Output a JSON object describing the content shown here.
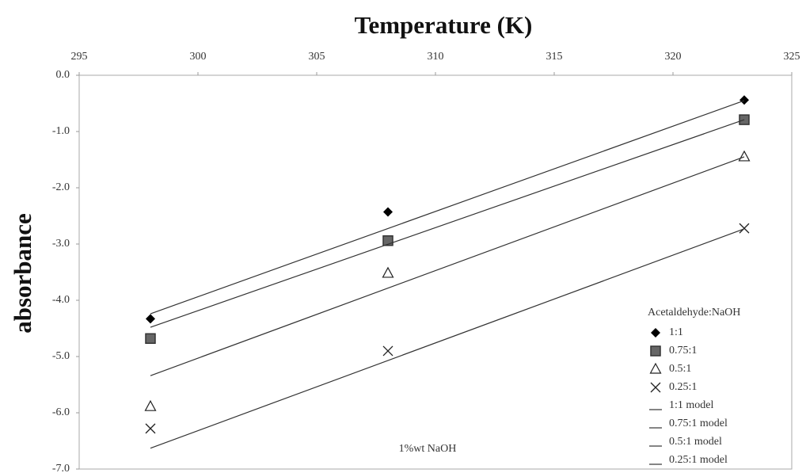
{
  "chart_data": {
    "type": "scatter",
    "x_label": "Temperature (K)",
    "y_label": "absorbance",
    "annotation": "1%wt NaOH",
    "legend_title": "Acetaldehyde:NaOH",
    "legend": "lower right",
    "xlim": [
      295,
      325
    ],
    "xticks": [
      295,
      300,
      305,
      310,
      315,
      320,
      325
    ],
    "ylim": [
      -7,
      0
    ],
    "yticks": [
      {
        "value": 0,
        "label": "0.0"
      },
      {
        "value": -1,
        "label": "-1.0"
      },
      {
        "value": -2,
        "label": "-2.0"
      },
      {
        "value": -3,
        "label": "-3.0"
      },
      {
        "value": -4,
        "label": "-4.0"
      },
      {
        "value": -5,
        "label": "-5.0"
      },
      {
        "value": -6,
        "label": "-6.0"
      },
      {
        "value": -7,
        "label": "-7.0"
      }
    ],
    "series": [
      {
        "name": "1:1",
        "color": "#000000",
        "marker": "diamond",
        "x": [
          298,
          308,
          323
        ],
        "values": [
          -4.33,
          -2.43,
          -0.44
        ]
      },
      {
        "name": "0.75:1",
        "color": "#666666",
        "marker": "square",
        "x": [
          298,
          308,
          323
        ],
        "values": [
          -4.68,
          -2.94,
          -0.79
        ]
      },
      {
        "name": "0.5:1",
        "color": "#222222",
        "marker": "triangle",
        "x": [
          298,
          308,
          323
        ],
        "values": [
          -5.89,
          -3.52,
          -1.45
        ]
      },
      {
        "name": "0.25:1",
        "color": "#222222",
        "marker": "cross",
        "x": [
          298,
          308,
          323
        ],
        "values": [
          -6.28,
          -4.9,
          -2.72
        ]
      },
      {
        "name": "1:1 model",
        "color": "#333333",
        "marker": "line",
        "x": [
          298,
          323
        ],
        "values": [
          -4.24,
          -0.45
        ]
      },
      {
        "name": "0.75:1 model",
        "color": "#333333",
        "marker": "line",
        "x": [
          298,
          323
        ],
        "values": [
          -4.48,
          -0.79
        ]
      },
      {
        "name": "0.5:1 model",
        "color": "#333333",
        "marker": "line",
        "x": [
          298,
          323
        ],
        "values": [
          -5.34,
          -1.45
        ]
      },
      {
        "name": "0.25:1 model",
        "color": "#333333",
        "marker": "line",
        "x": [
          298,
          323
        ],
        "values": [
          -6.63,
          -2.73
        ]
      }
    ]
  }
}
